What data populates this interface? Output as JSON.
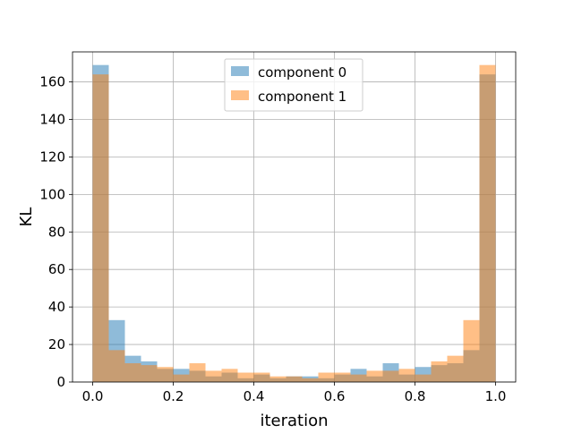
{
  "chart_data": {
    "type": "bar",
    "subtype": "overlaid-histogram",
    "xlabel": "iteration",
    "ylabel": "KL",
    "xlim": [
      -0.05,
      1.05
    ],
    "ylim": [
      0,
      176
    ],
    "grid": true,
    "legend_position": "top-center",
    "bin_edges": [
      0.0,
      0.04,
      0.08,
      0.12,
      0.16,
      0.2,
      0.24,
      0.28,
      0.32,
      0.36,
      0.4,
      0.44,
      0.48,
      0.52,
      0.56,
      0.6,
      0.64,
      0.68,
      0.72,
      0.76,
      0.8,
      0.84,
      0.88,
      0.92,
      0.96,
      1.0
    ],
    "x_ticks": [
      0.0,
      0.2,
      0.4,
      0.6,
      0.8,
      1.0
    ],
    "x_tick_labels": [
      "0.0",
      "0.2",
      "0.4",
      "0.6",
      "0.8",
      "1.0"
    ],
    "y_ticks": [
      0,
      20,
      40,
      60,
      80,
      100,
      120,
      140,
      160
    ],
    "y_tick_labels": [
      "0",
      "20",
      "40",
      "60",
      "80",
      "100",
      "120",
      "140",
      "160"
    ],
    "series": [
      {
        "name": "component 0",
        "color": "#1f77b4",
        "alpha": 0.5,
        "values": [
          169,
          33,
          14,
          11,
          7,
          7,
          6,
          3,
          5,
          2,
          4,
          2,
          3,
          3,
          2,
          4,
          7,
          3,
          10,
          4,
          8,
          9,
          10,
          17,
          164
        ]
      },
      {
        "name": "component 1",
        "color": "#ff7f0e",
        "alpha": 0.5,
        "values": [
          164,
          17,
          10,
          9,
          8,
          4,
          10,
          6,
          7,
          5,
          5,
          3,
          3,
          2,
          5,
          5,
          4,
          6,
          6,
          7,
          4,
          11,
          14,
          33,
          169
        ]
      }
    ]
  }
}
